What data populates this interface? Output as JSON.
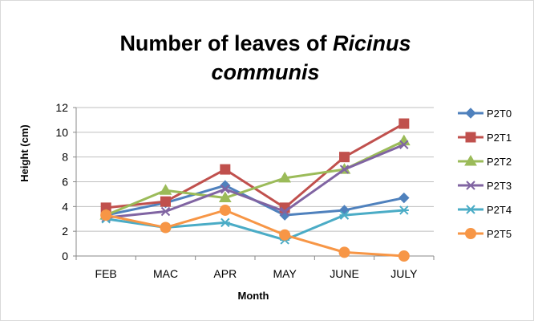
{
  "chart_data": {
    "type": "line",
    "title_line1": "Number of leaves of ",
    "title_italic1": "Ricinus",
    "title_italic2": "communis",
    "xlabel": "Month",
    "ylabel": "Height (cm)",
    "categories": [
      "FEB",
      "MAC",
      "APR",
      "MAY",
      "JUNE",
      "JULY"
    ],
    "ylim": [
      0,
      12
    ],
    "yticks": [
      "0",
      "2",
      "4",
      "6",
      "8",
      "10",
      "12"
    ],
    "grid": true,
    "legend_position": "right",
    "series": [
      {
        "name": "P2T0",
        "color": "#4F81BD",
        "marker": "diamond",
        "values": [
          3.3,
          4.3,
          5.7,
          3.3,
          3.7,
          4.7
        ]
      },
      {
        "name": "P2T1",
        "color": "#C0504D",
        "marker": "square",
        "values": [
          3.9,
          4.4,
          7.0,
          3.9,
          8.0,
          10.7
        ]
      },
      {
        "name": "P2T2",
        "color": "#9BBB59",
        "marker": "triangle",
        "values": [
          3.3,
          5.3,
          4.7,
          6.3,
          7.0,
          9.3
        ]
      },
      {
        "name": "P2T3",
        "color": "#8064A2",
        "marker": "x",
        "values": [
          3.1,
          3.6,
          5.4,
          3.6,
          7.0,
          9.0
        ]
      },
      {
        "name": "P2T4",
        "color": "#4BACC6",
        "marker": "asterisk",
        "values": [
          3.0,
          2.3,
          2.7,
          1.3,
          3.3,
          3.7
        ]
      },
      {
        "name": "P2T5",
        "color": "#F79646",
        "marker": "circle",
        "values": [
          3.3,
          2.3,
          3.7,
          1.7,
          0.3,
          0.0
        ]
      }
    ]
  }
}
